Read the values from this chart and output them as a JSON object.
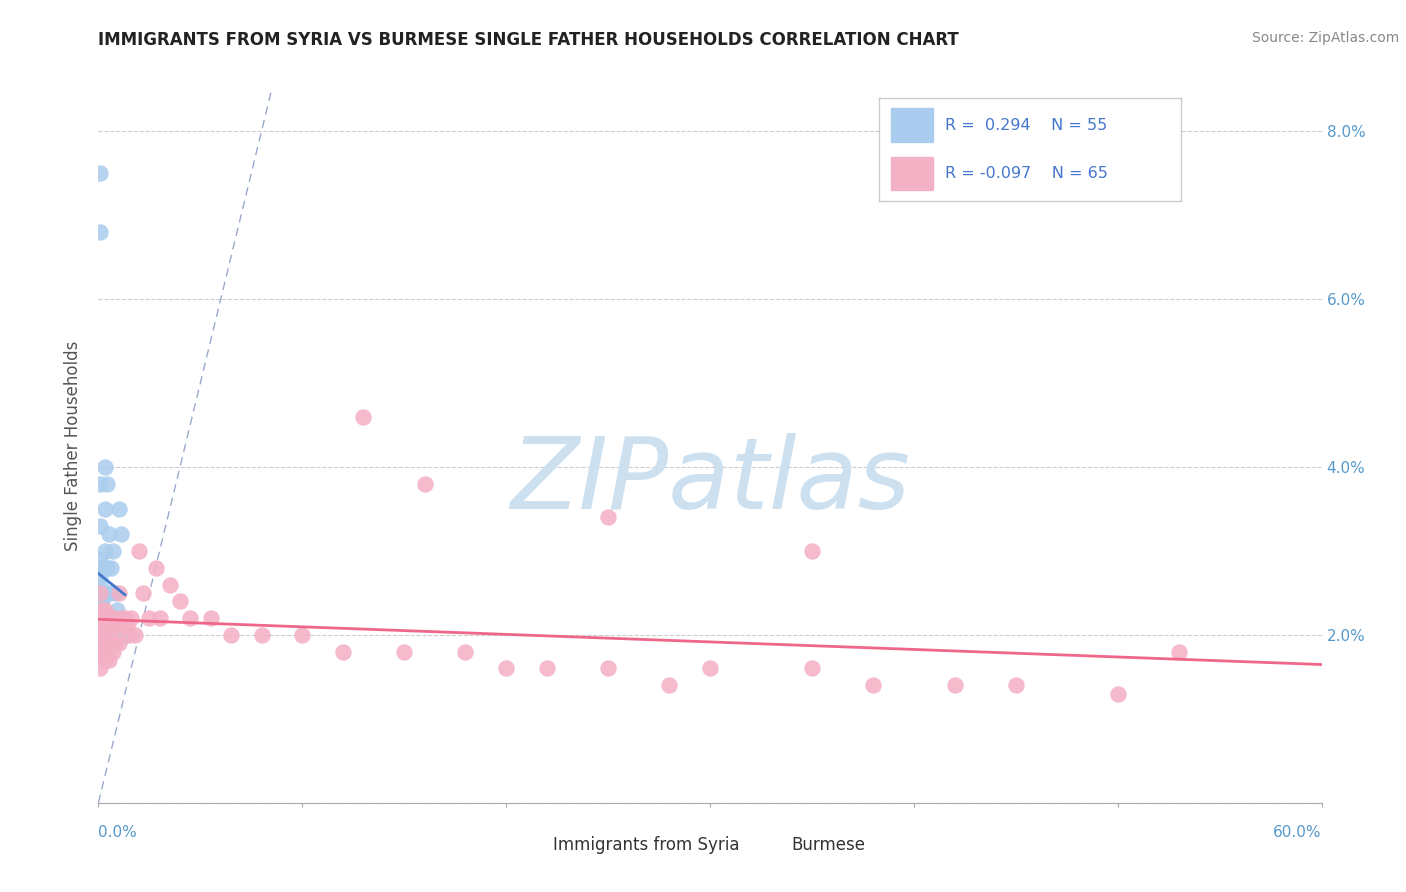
{
  "title": "IMMIGRANTS FROM SYRIA VS BURMESE SINGLE FATHER HOUSEHOLDS CORRELATION CHART",
  "source": "Source: ZipAtlas.com",
  "xlabel_syria": "Immigrants from Syria",
  "xlabel_burmese": "Burmese",
  "ylabel": "Single Father Households",
  "xmin": 0.0,
  "xmax": 0.6,
  "ymin": 0.0,
  "ymax": 0.085,
  "yticks": [
    0.0,
    0.02,
    0.04,
    0.06,
    0.08
  ],
  "ytick_labels_right": [
    "",
    "2.0%",
    "4.0%",
    "6.0%",
    "8.0%"
  ],
  "r_syria": 0.294,
  "n_syria": 55,
  "r_burmese": -0.097,
  "n_burmese": 65,
  "color_syria": "#aaccee",
  "color_burmese": "#f4b0c4",
  "color_syria_line": "#4477cc",
  "color_burmese_line": "#ee6688",
  "color_diag": "#aabbdd",
  "watermark_text": "ZIPatlas",
  "watermark_color": "#cce0f0",
  "background_color": "#ffffff",
  "syria_x": [
    0.001,
    0.001,
    0.002,
    0.001,
    0.001,
    0.001,
    0.001,
    0.001,
    0.001,
    0.001,
    0.001,
    0.001,
    0.001,
    0.001,
    0.001,
    0.001,
    0.001,
    0.001,
    0.001,
    0.001,
    0.001,
    0.001,
    0.002,
    0.002,
    0.002,
    0.002,
    0.002,
    0.002,
    0.002,
    0.002,
    0.002,
    0.002,
    0.003,
    0.003,
    0.003,
    0.003,
    0.003,
    0.003,
    0.003,
    0.003,
    0.004,
    0.004,
    0.004,
    0.005,
    0.005,
    0.005,
    0.006,
    0.006,
    0.007,
    0.007,
    0.008,
    0.009,
    0.01,
    0.011,
    0.013
  ],
  "syria_y": [
    0.075,
    0.068,
    0.022,
    0.038,
    0.033,
    0.029,
    0.028,
    0.027,
    0.026,
    0.025,
    0.025,
    0.025,
    0.024,
    0.024,
    0.023,
    0.023,
    0.023,
    0.022,
    0.022,
    0.021,
    0.021,
    0.02,
    0.021,
    0.025,
    0.024,
    0.023,
    0.022,
    0.022,
    0.021,
    0.02,
    0.019,
    0.018,
    0.04,
    0.035,
    0.03,
    0.025,
    0.022,
    0.021,
    0.02,
    0.019,
    0.038,
    0.028,
    0.02,
    0.032,
    0.025,
    0.019,
    0.028,
    0.021,
    0.03,
    0.022,
    0.025,
    0.023,
    0.035,
    0.032,
    0.02
  ],
  "burmese_x": [
    0.001,
    0.001,
    0.001,
    0.001,
    0.001,
    0.002,
    0.002,
    0.002,
    0.002,
    0.003,
    0.003,
    0.003,
    0.003,
    0.004,
    0.004,
    0.004,
    0.005,
    0.005,
    0.005,
    0.006,
    0.006,
    0.007,
    0.007,
    0.008,
    0.008,
    0.009,
    0.01,
    0.01,
    0.011,
    0.012,
    0.013,
    0.014,
    0.015,
    0.016,
    0.018,
    0.02,
    0.022,
    0.025,
    0.028,
    0.03,
    0.035,
    0.04,
    0.045,
    0.055,
    0.065,
    0.08,
    0.1,
    0.12,
    0.15,
    0.18,
    0.2,
    0.22,
    0.25,
    0.28,
    0.3,
    0.35,
    0.38,
    0.42,
    0.45,
    0.5,
    0.13,
    0.16,
    0.25,
    0.35,
    0.53
  ],
  "burmese_y": [
    0.025,
    0.022,
    0.02,
    0.018,
    0.016,
    0.023,
    0.021,
    0.02,
    0.018,
    0.023,
    0.021,
    0.019,
    0.017,
    0.022,
    0.021,
    0.018,
    0.022,
    0.02,
    0.017,
    0.022,
    0.019,
    0.021,
    0.018,
    0.022,
    0.019,
    0.021,
    0.025,
    0.019,
    0.022,
    0.021,
    0.022,
    0.021,
    0.02,
    0.022,
    0.02,
    0.03,
    0.025,
    0.022,
    0.028,
    0.022,
    0.026,
    0.024,
    0.022,
    0.022,
    0.02,
    0.02,
    0.02,
    0.018,
    0.018,
    0.018,
    0.016,
    0.016,
    0.016,
    0.014,
    0.016,
    0.016,
    0.014,
    0.014,
    0.014,
    0.013,
    0.046,
    0.038,
    0.034,
    0.03,
    0.018
  ]
}
